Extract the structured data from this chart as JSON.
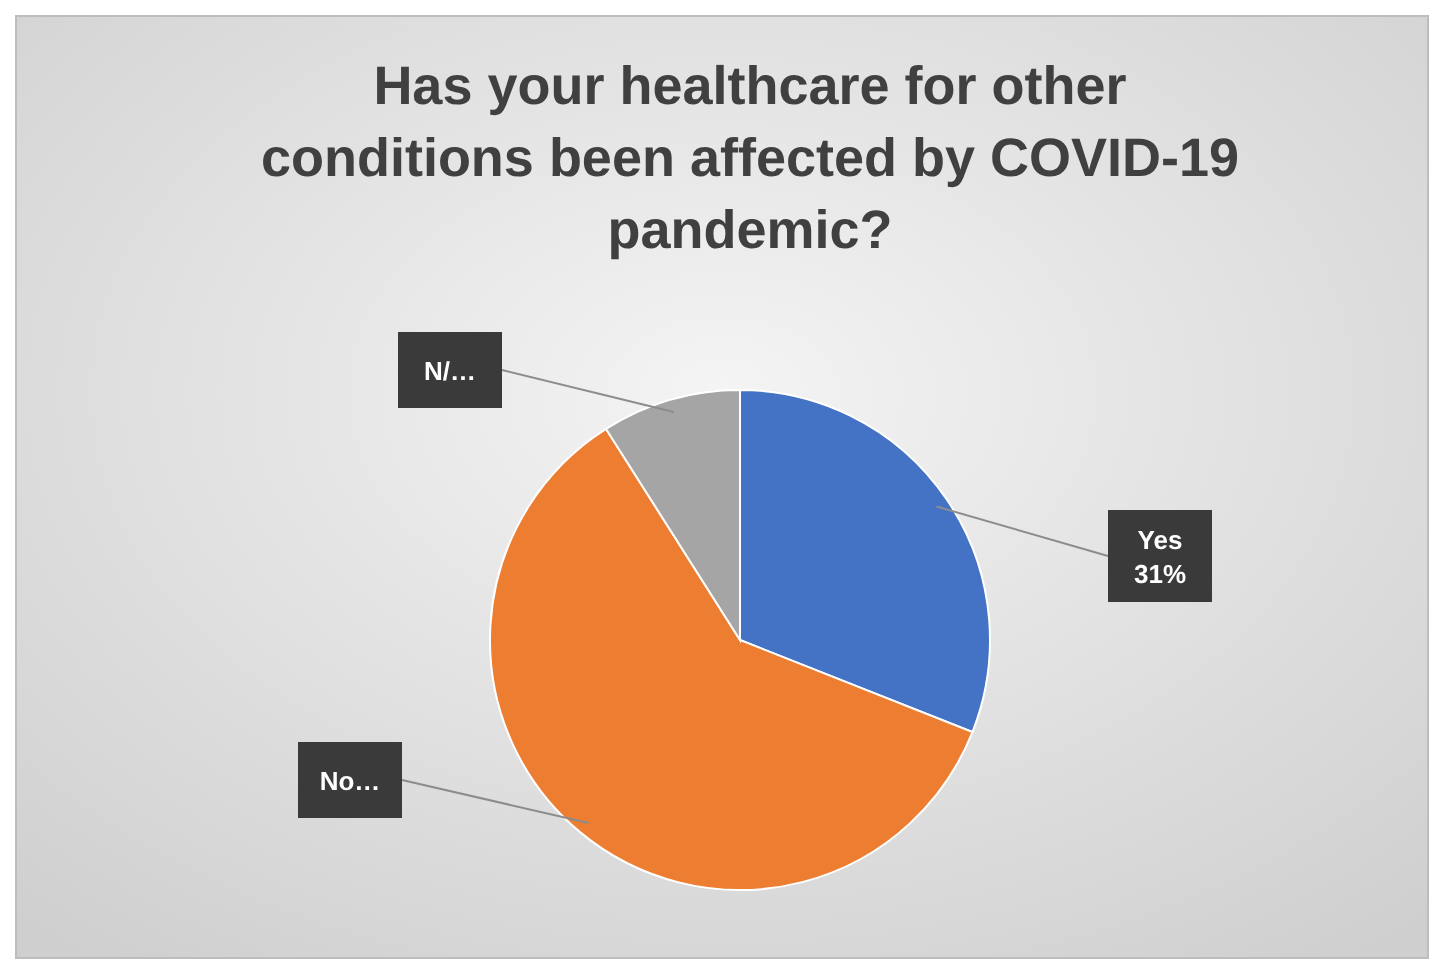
{
  "chart_data": {
    "type": "pie",
    "title": "Has your healthcare for other conditions been affected by COVID-19 pandemic?",
    "categories": [
      "Yes",
      "No…",
      "N/…"
    ],
    "values": [
      31,
      60,
      9
    ],
    "colors": [
      "#4472c4",
      "#ed7d31",
      "#a5a5a5"
    ],
    "value_labels": [
      "31%",
      null,
      null
    ]
  }
}
